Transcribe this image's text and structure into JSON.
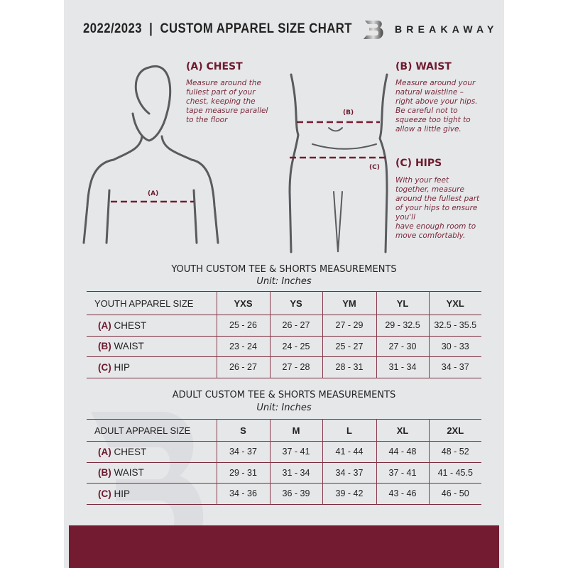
{
  "header": {
    "title": "2022/2023  |  CUSTOM APPAREL SIZE CHART",
    "brand": "BREAKAWAY"
  },
  "colors": {
    "accent": "#731c31",
    "panel": "#e6e7e9"
  },
  "guides": {
    "chest": {
      "heading": "(A) CHEST",
      "text": "Measure around the\nfullest part of your\nchest, keeping the\ntape measure parallel\nto the floor",
      "marker": "(A)"
    },
    "waist": {
      "heading": "(B) WAIST",
      "text": "Measure around your\nnatural waistline –\nright above your hips.\nBe careful not to\nsqueeze too tight to\nallow a little give.",
      "marker": "(B)"
    },
    "hips": {
      "heading": "(C) HIPS",
      "text": "With your feet\ntogether, measure\naround the fullest part\nof your hips to ensure\nyou'll\nhave enough room to\nmove comfortably.",
      "marker": "(C)"
    }
  },
  "youth": {
    "title": "YOUTH CUSTOM TEE & SHORTS MEASUREMENTS",
    "unit": "Unit: Inches",
    "header": "YOUTH APPAREL SIZE",
    "sizes": [
      "YXS",
      "YS",
      "YM",
      "YL",
      "YXL"
    ],
    "rows": [
      {
        "code": "(A)",
        "label": "CHEST",
        "values": [
          "25 - 26",
          "26 - 27",
          "27 - 29",
          "29 - 32.5",
          "32.5 - 35.5"
        ]
      },
      {
        "code": "(B)",
        "label": "WAIST",
        "values": [
          "23 - 24",
          "24 - 25",
          "25 - 27",
          "27 - 30",
          "30 - 33"
        ]
      },
      {
        "code": "(C)",
        "label": "HIP",
        "values": [
          "26 - 27",
          "27 - 28",
          "28 - 31",
          "31 - 34",
          "34 - 37"
        ]
      }
    ]
  },
  "adult": {
    "title": "ADULT CUSTOM TEE & SHORTS MEASUREMENTS",
    "unit": "Unit: Inches",
    "header": "ADULT APPAREL SIZE",
    "sizes": [
      "S",
      "M",
      "L",
      "XL",
      "2XL"
    ],
    "rows": [
      {
        "code": "(A)",
        "label": "CHEST",
        "values": [
          "34 - 37",
          "37 - 41",
          "41 - 44",
          "44 - 48",
          "48 - 52"
        ]
      },
      {
        "code": "(B)",
        "label": "WAIST",
        "values": [
          "29 - 31",
          "31 - 34",
          "34 - 37",
          "37 - 41",
          "41 - 45.5"
        ]
      },
      {
        "code": "(C)",
        "label": "HIP",
        "values": [
          "34 - 36",
          "36 - 39",
          "39 - 42",
          "43 - 46",
          "46 - 50"
        ]
      }
    ]
  }
}
